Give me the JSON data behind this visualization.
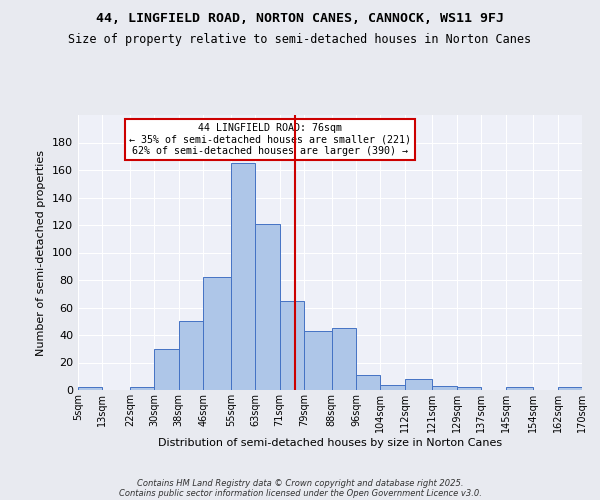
{
  "title1": "44, LINGFIELD ROAD, NORTON CANES, CANNOCK, WS11 9FJ",
  "title2": "Size of property relative to semi-detached houses in Norton Canes",
  "xlabel": "Distribution of semi-detached houses by size in Norton Canes",
  "ylabel": "Number of semi-detached properties",
  "bin_edges": [
    5,
    13,
    22,
    30,
    38,
    46,
    55,
    63,
    71,
    79,
    88,
    96,
    104,
    112,
    121,
    129,
    137,
    145,
    154,
    162,
    170
  ],
  "bar_heights": [
    2,
    0,
    2,
    30,
    50,
    82,
    165,
    121,
    65,
    43,
    45,
    11,
    4,
    8,
    3,
    2,
    0,
    2,
    0,
    2
  ],
  "bar_color": "#aec6e8",
  "bar_edge_color": "#4472c4",
  "property_size": 76,
  "vline_color": "#cc0000",
  "annotation_title": "44 LINGFIELD ROAD: 76sqm",
  "annotation_line1": "← 35% of semi-detached houses are smaller (221)",
  "annotation_line2": "62% of semi-detached houses are larger (390) →",
  "annotation_box_color": "#ffffff",
  "annotation_box_edge_color": "#cc0000",
  "ylim": [
    0,
    200
  ],
  "yticks": [
    0,
    20,
    40,
    60,
    80,
    100,
    120,
    140,
    160,
    180,
    200
  ],
  "background_color": "#e8eaf0",
  "plot_bg_color": "#eef0f8",
  "footer1": "Contains HM Land Registry data © Crown copyright and database right 2025.",
  "footer2": "Contains public sector information licensed under the Open Government Licence v3.0.",
  "tick_labels": [
    "5sqm",
    "13sqm",
    "22sqm",
    "30sqm",
    "38sqm",
    "46sqm",
    "55sqm",
    "63sqm",
    "71sqm",
    "79sqm",
    "88sqm",
    "96sqm",
    "104sqm",
    "112sqm",
    "121sqm",
    "129sqm",
    "137sqm",
    "145sqm",
    "154sqm",
    "162sqm",
    "170sqm"
  ]
}
